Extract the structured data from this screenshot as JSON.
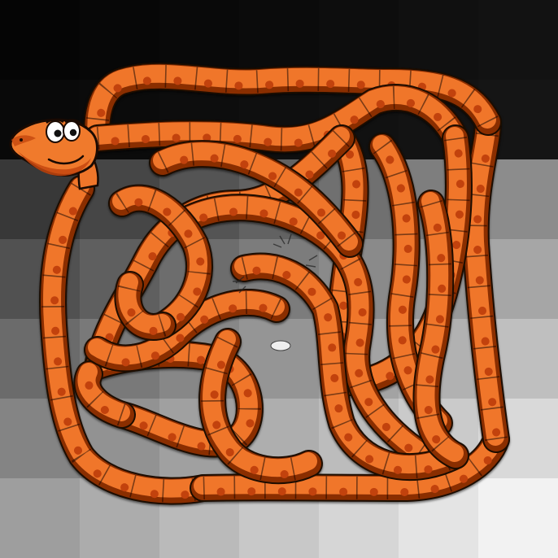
{
  "game": {
    "background": {
      "style": "grayscale-checker-gradient",
      "dark": "#050505",
      "light": "#f2f2f2"
    },
    "snake": {
      "body_color": "#f0762a",
      "body_shadow": "#8a2e06",
      "spot_color": "#c2420c",
      "outline_color": "#1a0a02",
      "head_icon": "snake-head-icon"
    }
  }
}
